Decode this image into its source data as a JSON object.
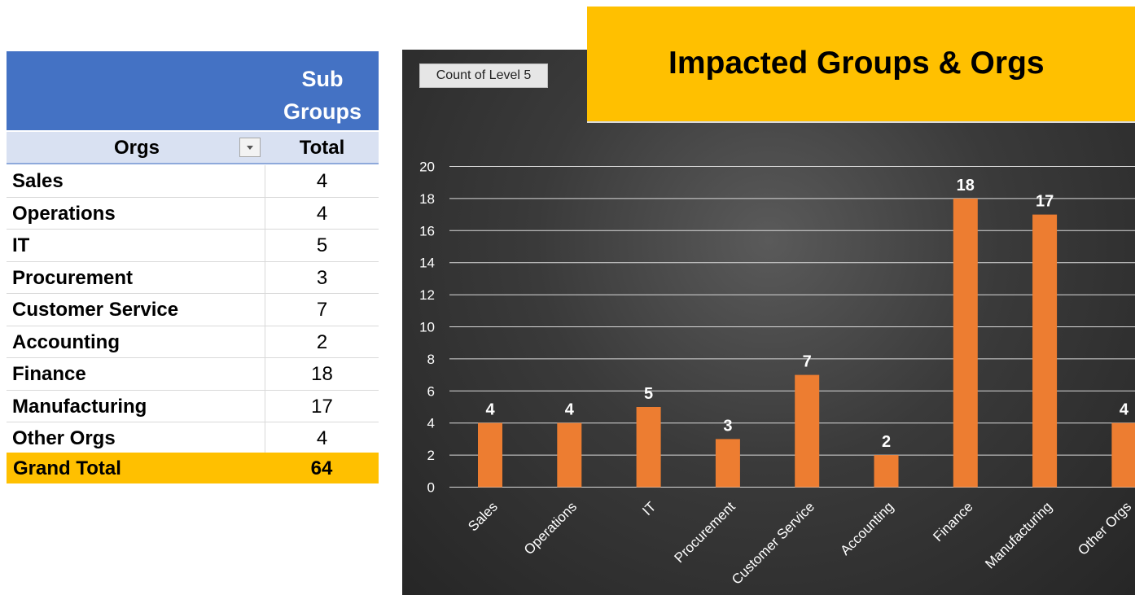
{
  "pivot": {
    "header_label": "Sub Groups",
    "col_orgs": "Orgs",
    "col_total": "Total",
    "rows": [
      {
        "label": "Sales",
        "value": "4"
      },
      {
        "label": "Operations",
        "value": "4"
      },
      {
        "label": "IT",
        "value": "5"
      },
      {
        "label": "Procurement",
        "value": "3"
      },
      {
        "label": "Customer Service",
        "value": "7"
      },
      {
        "label": "Accounting",
        "value": "2"
      },
      {
        "label": "Finance",
        "value": "18"
      },
      {
        "label": "Manufacturing",
        "value": "17"
      },
      {
        "label": "Other Orgs",
        "value": "4"
      }
    ],
    "grand_total_label": "Grand Total",
    "grand_total_value": "64"
  },
  "chart_field_button": "Count of Level 5",
  "chart_data": {
    "type": "bar",
    "title": "Impacted Groups & Orgs",
    "categories": [
      "Sales",
      "Operations",
      "IT",
      "Procurement",
      "Customer Service",
      "Accounting",
      "Finance",
      "Manufacturing",
      "Other Orgs"
    ],
    "series": [
      {
        "values": [
          4,
          4,
          5,
          3,
          7,
          2,
          18,
          17,
          4
        ]
      }
    ],
    "ylim": [
      0,
      20
    ],
    "yticks": [
      0,
      2,
      4,
      6,
      8,
      10,
      12,
      14,
      16,
      18,
      20
    ],
    "grid": true,
    "data_labels": true,
    "colors": {
      "bar": "#ED7D31",
      "background": "#333333",
      "grid": "#d9d9d9",
      "text": "#ffffff"
    }
  }
}
